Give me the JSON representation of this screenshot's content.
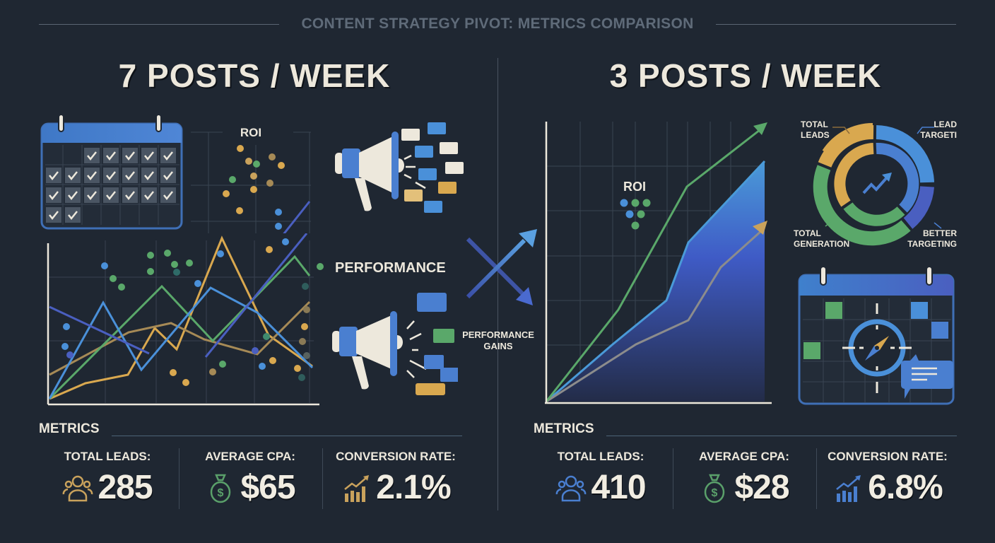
{
  "header": {
    "title": "CONTENT STRATEGY PIVOT: METRICS COMPARISON"
  },
  "left": {
    "title": "7 POSTS / WEEK",
    "roi_label": "ROI",
    "performance_label": "PERFORMANCE",
    "calendar": {
      "checked_days": 21
    },
    "metrics": {
      "section_label": "METRICS",
      "items": [
        {
          "label": "TOTAL LEADS:",
          "value": "285",
          "icon": "users-icon",
          "color": "#c9a25c"
        },
        {
          "label": "AVERAGE CPA:",
          "value": "$65",
          "icon": "money-bag-icon",
          "color": "#5aa06a"
        },
        {
          "label": "CONVERSION RATE:",
          "value": "2.1%",
          "icon": "bar-trend-icon",
          "color": "#c9a25c"
        }
      ]
    }
  },
  "middle": {
    "gains_label_1": "PERFORMANCE",
    "gains_label_2": "GAINS"
  },
  "right": {
    "title": "3 POSTS / WEEK",
    "roi_label": "ROI",
    "donut_labels": {
      "top_left_1": "TOTAL",
      "top_left_2": "LEADS",
      "top_right_1": "LEAD",
      "top_right_2": "TARGETI",
      "bottom_left_1": "TOTAL",
      "bottom_left_2": "GENERATION",
      "bottom_right_1": "BETTER",
      "bottom_right_2": "TARGETING"
    },
    "metrics": {
      "section_label": "METRICS",
      "items": [
        {
          "label": "TOTAL LEADS:",
          "value": "410",
          "icon": "users-icon",
          "color": "#4a7fd0"
        },
        {
          "label": "AVERAGE CPA:",
          "value": "$28",
          "icon": "money-bag-icon",
          "color": "#5aa06a"
        },
        {
          "label": "CONVERSION RATE:",
          "value": "6.8%",
          "icon": "bar-trend-icon",
          "color": "#4a7fd0"
        }
      ]
    }
  },
  "colors": {
    "background": "#1f2732",
    "text": "#ede8dc",
    "blue": "#4a90d9",
    "indigo": "#4a5fc0",
    "green": "#5aa86a",
    "gold": "#d9a84f"
  },
  "chart_data": [
    {
      "type": "line",
      "title": "7 POSTS / WEEK — Performance (noisy)",
      "xlabel": "",
      "ylabel": "",
      "x": [
        0,
        1,
        2,
        3,
        4,
        5
      ],
      "series": [
        {
          "name": "blue",
          "values": [
            0,
            5,
            1,
            6,
            4,
            2
          ]
        },
        {
          "name": "green",
          "values": [
            0,
            2,
            6,
            3,
            7,
            6
          ]
        },
        {
          "name": "gold-light",
          "values": [
            0,
            1,
            4,
            3,
            9,
            2
          ]
        },
        {
          "name": "gold-dark",
          "values": [
            2,
            3,
            5,
            2,
            5,
            3
          ]
        },
        {
          "name": "indigo",
          "values": [
            5,
            3,
            2,
            2,
            6,
            9
          ]
        }
      ],
      "grid": true,
      "annotations": [
        "ROI",
        "PERFORMANCE"
      ]
    },
    {
      "type": "area",
      "title": "3 POSTS / WEEK — ROI growth",
      "xlabel": "",
      "ylabel": "",
      "x": [
        0,
        1,
        2,
        3,
        4,
        5,
        6
      ],
      "series": [
        {
          "name": "green (ROI)",
          "values": [
            0,
            2.8,
            4.5,
            6.0,
            7.0,
            8.0,
            9.2
          ]
        },
        {
          "name": "blue area",
          "values": [
            0,
            1.4,
            2.2,
            4.4,
            5.2,
            6.1,
            7.0
          ]
        },
        {
          "name": "gray",
          "values": [
            0,
            1.0,
            1.6,
            2.0,
            3.3,
            4.2,
            5.0
          ]
        }
      ],
      "grid": true,
      "annotations": [
        "ROI"
      ]
    },
    {
      "type": "pie",
      "title": "Lead donut",
      "categories": [
        "TOTAL LEADS",
        "LEAD TARGETING",
        "BETTER TARGETING",
        "TOTAL GENERATION"
      ],
      "values": [
        25,
        25,
        15,
        35
      ]
    }
  ]
}
